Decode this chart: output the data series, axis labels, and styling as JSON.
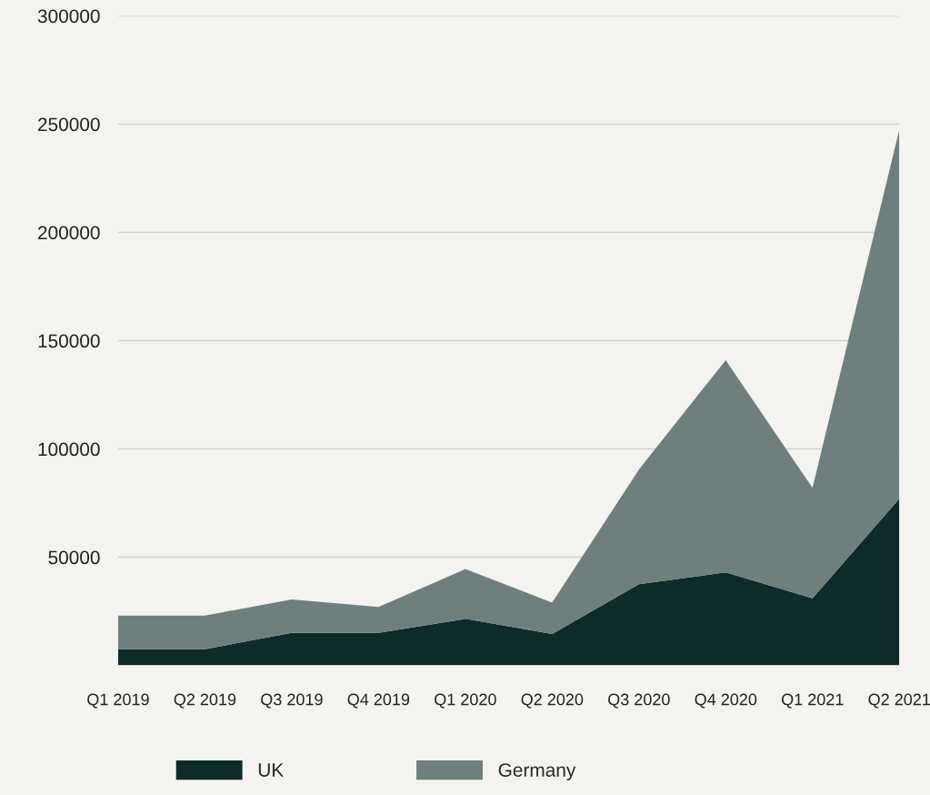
{
  "chart_data": {
    "type": "area",
    "stacked": true,
    "categories": [
      "Q1 2019",
      "Q2 2019",
      "Q3 2019",
      "Q4 2019",
      "Q1 2020",
      "Q2 2020",
      "Q3 2020",
      "Q4 2020",
      "Q1 2021",
      "Q2 2021"
    ],
    "series": [
      {
        "name": "UK",
        "color": "#0d2b2b",
        "values": [
          7500,
          7500,
          15000,
          15000,
          21500,
          14500,
          37500,
          43000,
          31000,
          77000
        ]
      },
      {
        "name": "Germany",
        "color": "#6e7f7d",
        "values": [
          15500,
          15500,
          15500,
          12000,
          23000,
          14500,
          53000,
          98000,
          51000,
          170500
        ]
      }
    ],
    "ylim": [
      0,
      300000
    ],
    "yticks": [
      {
        "value": 0,
        "label": null
      },
      50000,
      100000,
      150000,
      200000,
      250000,
      300000
    ],
    "grid": "y",
    "legend": "bottom"
  }
}
